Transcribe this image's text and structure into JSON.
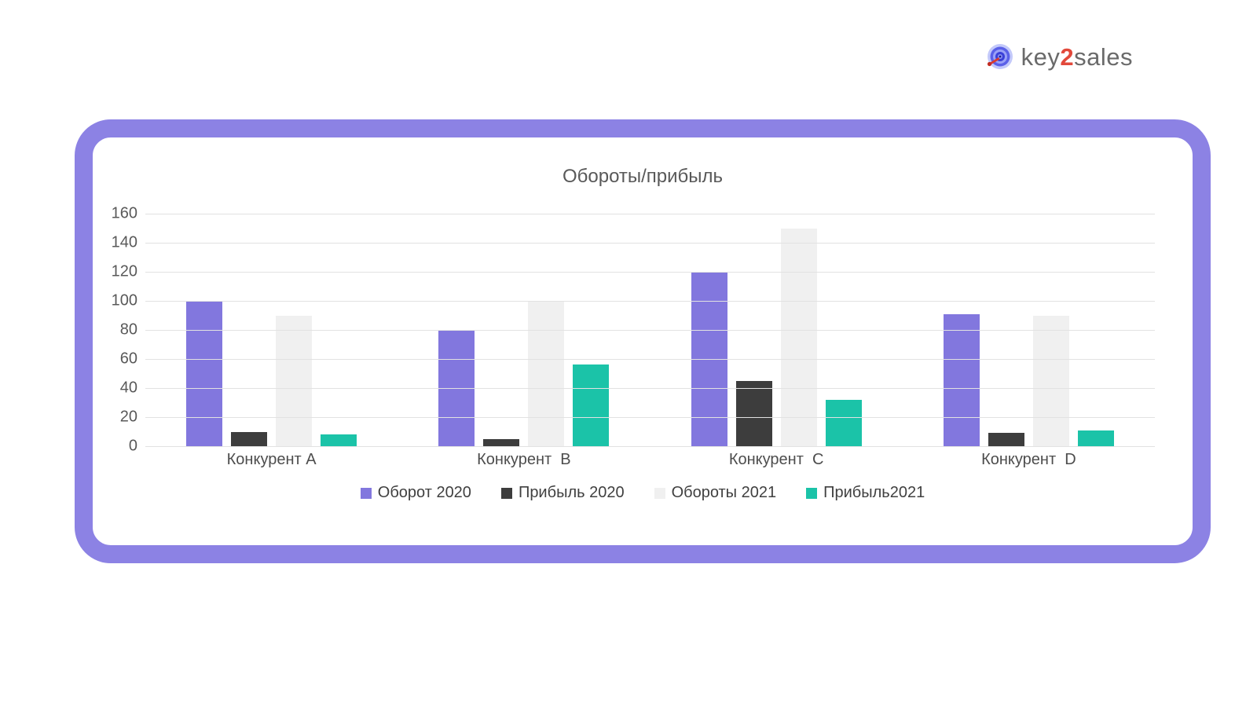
{
  "logo": {
    "key": "key",
    "two": "2",
    "sales": "sales",
    "accent_color": "#e2493b",
    "text_color": "#6a6a6a"
  },
  "card": {
    "border_color": "#8c82e4"
  },
  "chart_data": {
    "type": "bar",
    "title": "Обороты/прибыль",
    "categories": [
      "Конкурент А",
      "Конкурент  B",
      "Конкурент  C",
      "Конкурент  D"
    ],
    "series": [
      {
        "name": "Оборот 2020",
        "color": "#8277de",
        "values": [
          100,
          80,
          120,
          91
        ]
      },
      {
        "name": "Прибыль 2020",
        "color": "#3d3d3d",
        "values": [
          10,
          5,
          45,
          9
        ]
      },
      {
        "name": "Обороты 2021",
        "color": "#f0f0f0",
        "values": [
          90,
          100,
          150,
          90
        ]
      },
      {
        "name": "Прибыль2021",
        "color": "#1bc3a8",
        "values": [
          8,
          56,
          32,
          11
        ]
      }
    ],
    "ylim": [
      0,
      160
    ],
    "yticks": [
      0,
      20,
      40,
      60,
      80,
      100,
      120,
      140,
      160
    ],
    "grid": true,
    "legend_position": "bottom",
    "gridline_color": "#e2e2e2"
  }
}
